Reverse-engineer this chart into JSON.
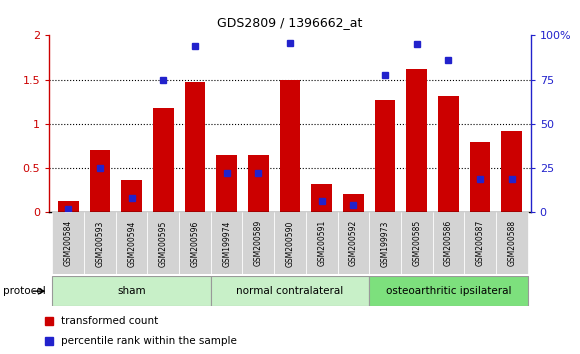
{
  "title": "GDS2809 / 1396662_at",
  "samples": [
    "GSM200584",
    "GSM200593",
    "GSM200594",
    "GSM200595",
    "GSM200596",
    "GSM199974",
    "GSM200589",
    "GSM200590",
    "GSM200591",
    "GSM200592",
    "GSM199973",
    "GSM200585",
    "GSM200586",
    "GSM200587",
    "GSM200588"
  ],
  "red_values": [
    0.13,
    0.7,
    0.37,
    1.18,
    1.47,
    0.65,
    0.65,
    1.5,
    0.32,
    0.21,
    1.27,
    1.62,
    1.31,
    0.8,
    0.92
  ],
  "blue_percentiles": [
    2,
    25,
    8,
    75,
    94,
    22,
    22,
    95.5,
    6.5,
    4,
    77.5,
    95,
    86,
    19,
    19
  ],
  "groups": [
    {
      "label": "sham",
      "start": 0,
      "end": 5,
      "color": "#c8f0c8"
    },
    {
      "label": "normal contralateral",
      "start": 5,
      "end": 10,
      "color": "#c8f0c8"
    },
    {
      "label": "osteoarthritic ipsilateral",
      "start": 10,
      "end": 15,
      "color": "#7de07d"
    }
  ],
  "ylim_left": [
    0,
    2
  ],
  "ylim_right": [
    0,
    100
  ],
  "yticks_left": [
    0,
    0.5,
    1.0,
    1.5,
    2.0
  ],
  "ytick_labels_left": [
    "0",
    "0.5",
    "1",
    "1.5",
    "2"
  ],
  "yticks_right": [
    0,
    25,
    50,
    75,
    100
  ],
  "ytick_labels_right": [
    "0",
    "25",
    "50",
    "75",
    "100%"
  ],
  "red_color": "#cc0000",
  "blue_color": "#2222cc",
  "bar_width": 0.65,
  "protocol_label": "protocol",
  "legend_red": "transformed count",
  "legend_blue": "percentile rank within the sample",
  "left_axis_color": "#cc0000",
  "right_axis_color": "#2222cc",
  "background_color": "#ffffff",
  "plot_bg_color": "#ffffff",
  "tick_label_bg": "#d3d3d3",
  "grid_ticks": [
    0.5,
    1.0,
    1.5
  ]
}
